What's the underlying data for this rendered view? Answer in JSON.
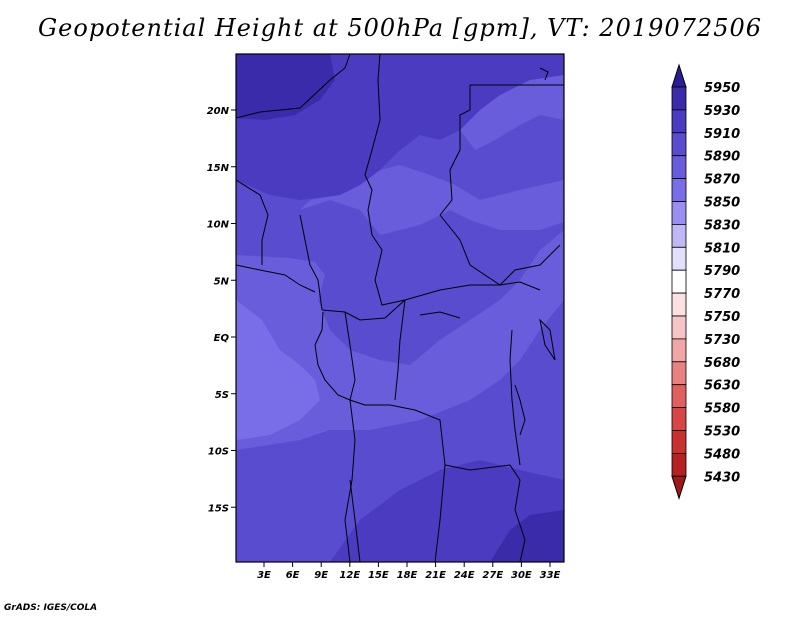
{
  "title": "Geopotential Height at 500hPa [gpm], VT: 2019072506",
  "footer": "GrADS: IGES/COLA",
  "map": {
    "lat_labels": [
      "20N",
      "15N",
      "10N",
      "5N",
      "EQ",
      "5S",
      "10S",
      "15S"
    ],
    "lon_labels": [
      "3E",
      "6E",
      "9E",
      "12E",
      "15E",
      "18E",
      "21E",
      "24E",
      "27E",
      "30E",
      "33E"
    ],
    "shade_colors": {
      "c5850": "#7a6ee8",
      "c5870": "#6a5ddc",
      "c5890": "#5a4ccf",
      "c5910": "#4a3bc0",
      "c5930": "#3a2bab"
    }
  },
  "colorbar": {
    "levels": [
      "5950",
      "5930",
      "5910",
      "5890",
      "5870",
      "5850",
      "5830",
      "5810",
      "5790",
      "5770",
      "5750",
      "5730",
      "5680",
      "5630",
      "5580",
      "5530",
      "5480",
      "5430"
    ],
    "colors": [
      "#2a1e96",
      "#3a2bab",
      "#4a3bc0",
      "#5a4ccf",
      "#6a5ddc",
      "#7a6ee8",
      "#9a8ff0",
      "#bfb8f5",
      "#e2dffb",
      "#ffffff",
      "#fbe1e1",
      "#f6c4c4",
      "#f0a6a6",
      "#e88282",
      "#e06060",
      "#d84545",
      "#c93030",
      "#b52020",
      "#a01818"
    ]
  }
}
